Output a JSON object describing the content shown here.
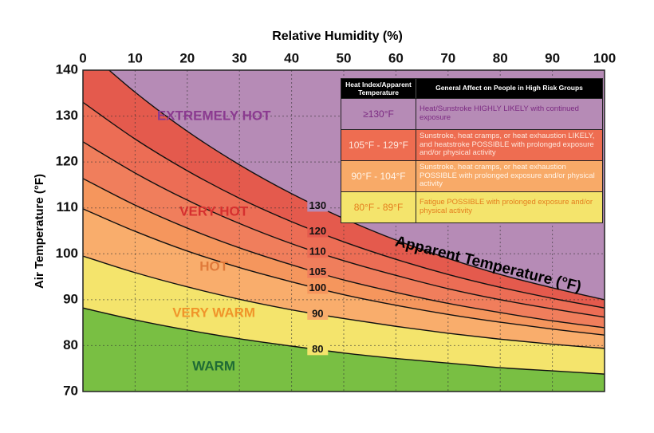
{
  "chart_data": {
    "type": "area",
    "title": "Relative Humidity (%)",
    "ylabel": "Air Temperature (°F)",
    "curve_title": "Apparent Temperature (°F)",
    "x": [
      0,
      10,
      20,
      30,
      40,
      50,
      60,
      70,
      80,
      90,
      100
    ],
    "xlim": [
      0,
      100
    ],
    "xticks": [
      0,
      10,
      20,
      30,
      40,
      50,
      60,
      70,
      80,
      90,
      100
    ],
    "ylim": [
      70,
      140
    ],
    "yticks": [
      70,
      80,
      90,
      100,
      110,
      120,
      130,
      140
    ],
    "grid": true,
    "base_color": "#79bf43",
    "line_color": "#111111",
    "series": [
      {
        "name": "80",
        "color": "#f4e46c",
        "values": [
          88.2,
          85.6,
          83.4,
          81.5,
          79.9,
          78.4,
          77.2,
          76.2,
          75.2,
          74.5,
          73.8
        ]
      },
      {
        "name": "90",
        "color": "#f9ad6c",
        "values": [
          99.5,
          95.9,
          92.8,
          90.1,
          87.8,
          85.9,
          84.2,
          82.7,
          81.4,
          80.3,
          79.4
        ]
      },
      {
        "name": "100",
        "color": "#f5965d",
        "values": [
          109.8,
          104.9,
          100.6,
          97.0,
          93.9,
          91.1,
          88.8,
          86.8,
          85.1,
          83.6,
          82.3
        ]
      },
      {
        "name": "105",
        "color": "#f07e5c",
        "values": [
          116.4,
          110.6,
          105.6,
          101.3,
          97.6,
          94.3,
          91.6,
          89.2,
          87.2,
          85.4,
          83.9
        ]
      },
      {
        "name": "110",
        "color": "#ec6d55",
        "values": [
          124.4,
          117.6,
          111.7,
          106.6,
          102.2,
          98.5,
          95.3,
          92.4,
          90.0,
          88.0,
          86.2
        ]
      },
      {
        "name": "120",
        "color": "#e45a4d",
        "values": [
          133.0,
          125.0,
          118.1,
          112.1,
          107.0,
          102.6,
          98.8,
          95.5,
          92.7,
          90.3,
          88.2
        ]
      },
      {
        "name": "130",
        "color": "#b68bb6",
        "values": [
          145.0,
          135.2,
          126.7,
          119.4,
          113.1,
          107.7,
          103.0,
          99.0,
          95.5,
          92.6,
          90.0
        ]
      }
    ],
    "zones": [
      {
        "label": "EXTREMELY HOT",
        "color": "#8b3a90"
      },
      {
        "label": "VERY HOT",
        "color": "#d6302f"
      },
      {
        "label": "HOT",
        "color": "#e07a3a"
      },
      {
        "label": "VERY WARM",
        "color": "#f0952a"
      },
      {
        "label": "WARM",
        "color": "#1f6b35"
      }
    ],
    "legend_table": {
      "header": [
        "Heat Index/Apparent Temperature",
        "General Affect on People in High Risk Groups"
      ],
      "rows": [
        {
          "range": "≥130°F",
          "effect": "Heat/Sunstroke HIGHLY LIKELY with continued exposure",
          "color": "#b68bb6",
          "text_color": "#7b2a82"
        },
        {
          "range": "105°F - 129°F",
          "effect": "Sunstroke, heat cramps, or heat exhaustion LIKELY, and heatstroke POSSIBLE with prolonged exposure and/or physical activity",
          "color": "#ee6d51",
          "text_color": "#fde6dc"
        },
        {
          "range": "90°F - 104°F",
          "effect": "Sunstroke, heat cramps, or heat exhaustion POSSIBLE with prolonged exposure and/or physical activity",
          "color": "#f8aa68",
          "text_color": "#fff4e8"
        },
        {
          "range": "80°F - 89°F",
          "effect": "Fatigue POSSIBLE with prolonged exposure and/or physical activity",
          "color": "#f4e46c",
          "text_color": "#e47e1e"
        }
      ]
    }
  }
}
